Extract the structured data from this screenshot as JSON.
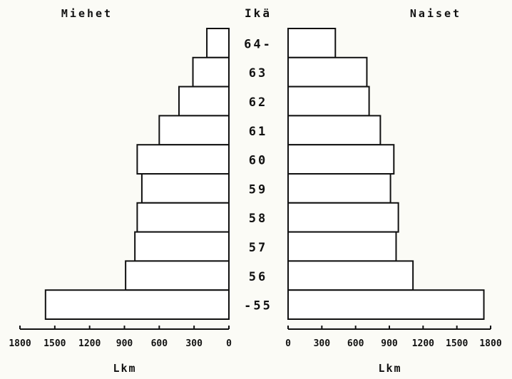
{
  "chart_data": {
    "type": "bar",
    "layout": "population-pyramid",
    "left_title": "Miehet",
    "right_title": "Naiset",
    "center_title": "Ikä",
    "xlabel_left": "Lkm",
    "xlabel_right": "Lkm",
    "categories": [
      "64-",
      "63",
      "62",
      "61",
      "60",
      "59",
      "58",
      "57",
      "56",
      "-55"
    ],
    "series": [
      {
        "name": "Miehet",
        "values": [
          190,
          310,
          430,
          600,
          790,
          750,
          790,
          810,
          890,
          1580
        ]
      },
      {
        "name": "Naiset",
        "values": [
          420,
          700,
          720,
          820,
          940,
          910,
          980,
          960,
          1110,
          1740
        ]
      }
    ],
    "xlim_left": [
      1800,
      0
    ],
    "xlim_right": [
      0,
      1800
    ],
    "ticks_left": [
      "1800",
      "1500",
      "1200",
      "900",
      "600",
      "300",
      "0"
    ],
    "ticks_right": [
      "0",
      "300",
      "600",
      "900",
      "1200",
      "1500",
      "1800"
    ],
    "tick_values": [
      0,
      300,
      600,
      900,
      1200,
      1500,
      1800
    ],
    "grid": false,
    "colors": {
      "bar_fill": "#ffffff",
      "bar_stroke": "#111111",
      "text": "#111111"
    }
  }
}
